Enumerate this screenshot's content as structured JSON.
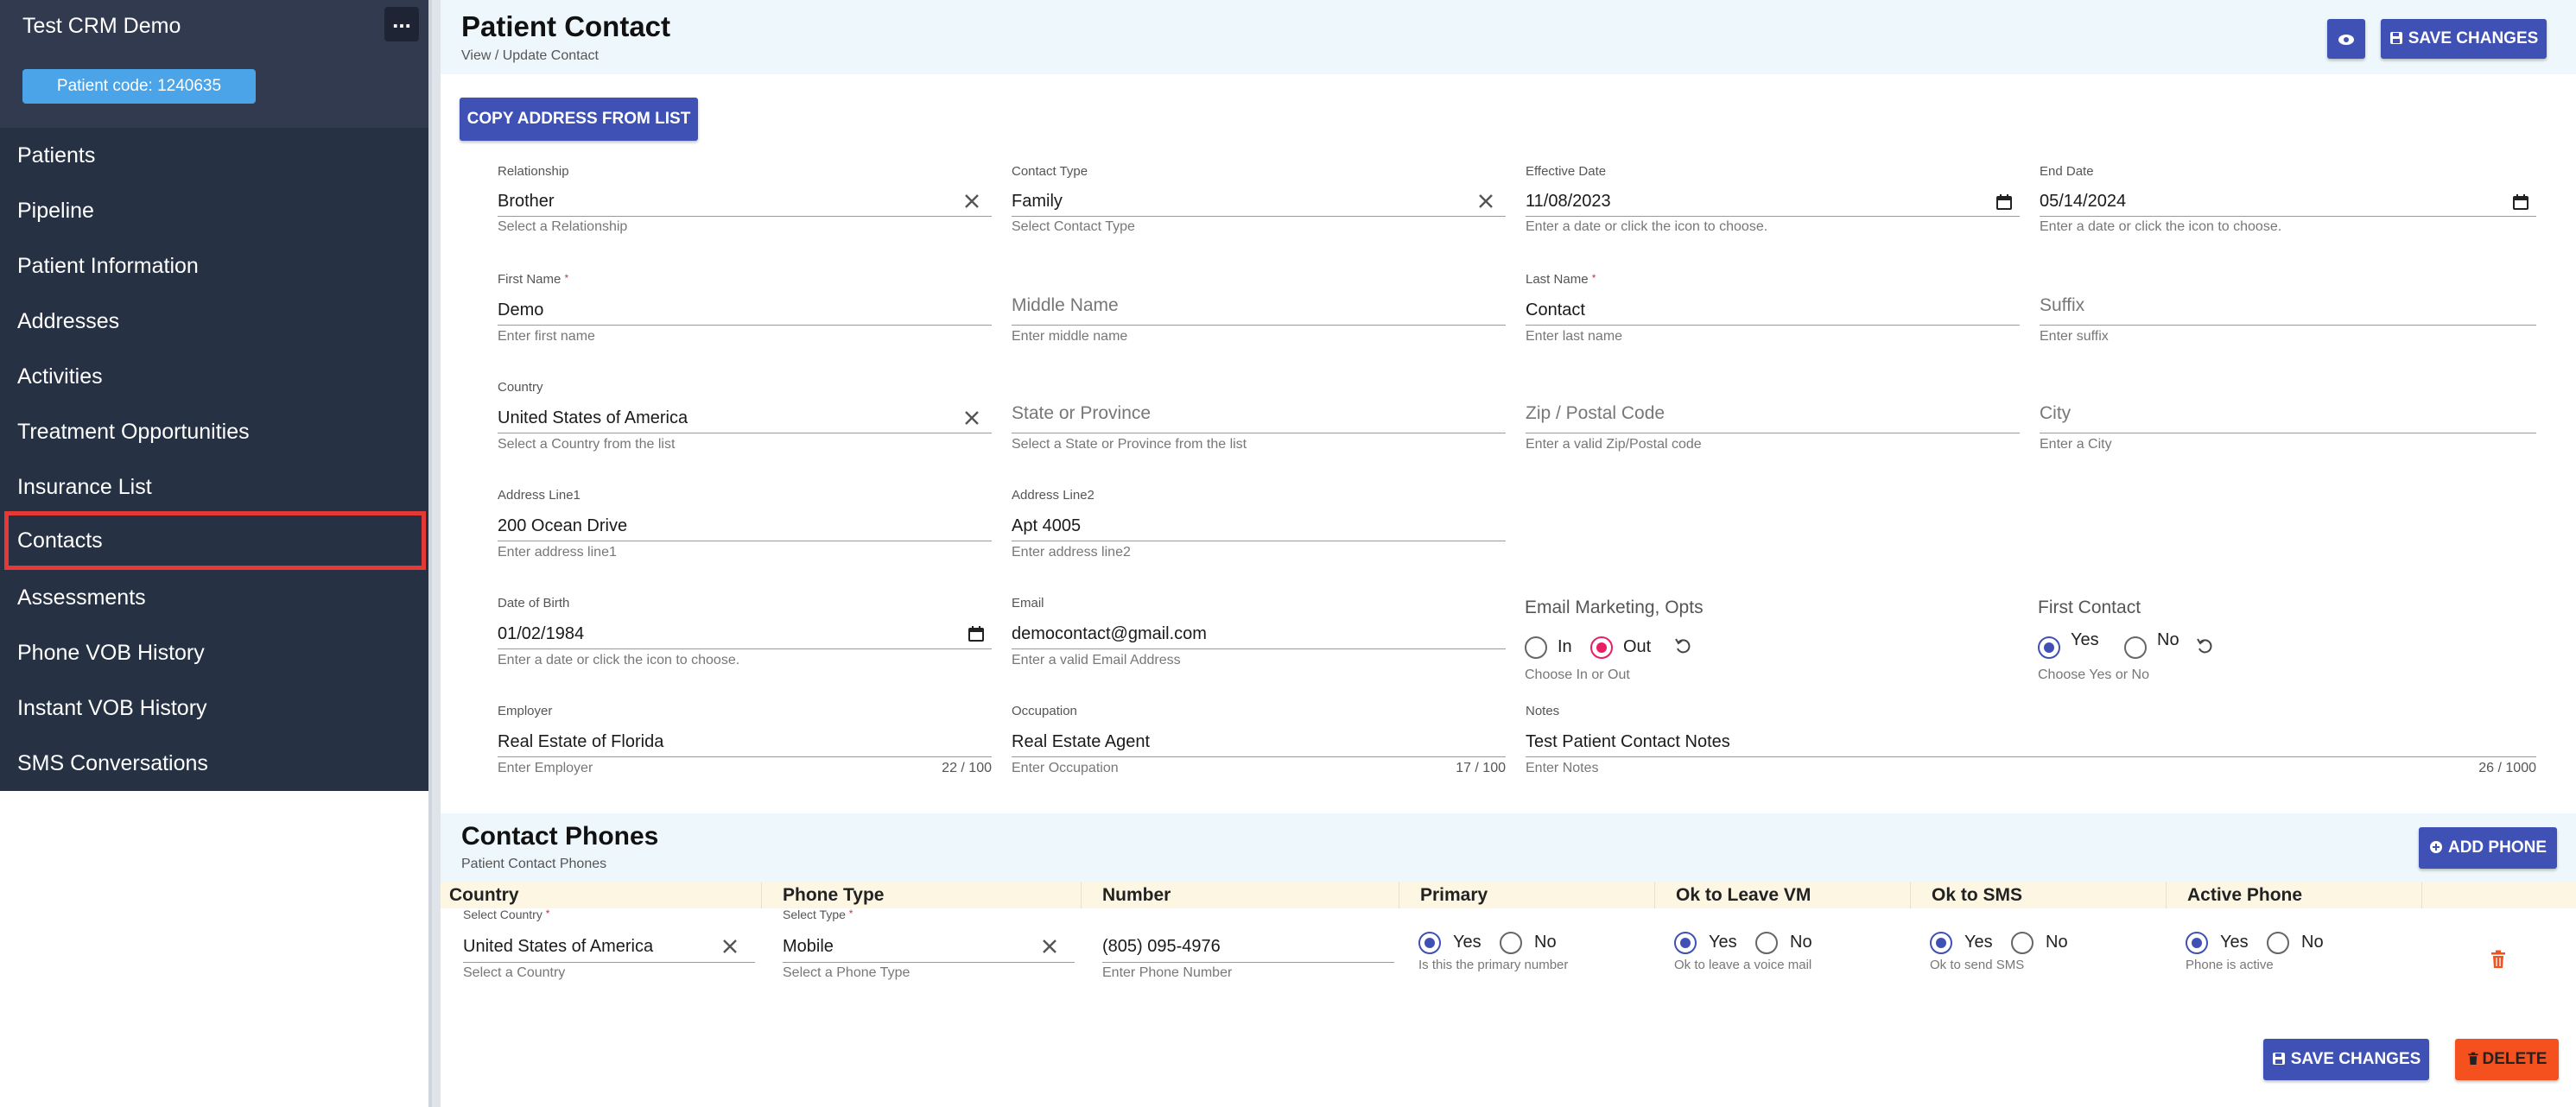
{
  "sidebar": {
    "title": "Test CRM Demo",
    "more_label": "...",
    "patient_code": "Patient code: 1240635",
    "items": [
      {
        "label": "Patients"
      },
      {
        "label": "Pipeline"
      },
      {
        "label": "Patient Information"
      },
      {
        "label": "Addresses"
      },
      {
        "label": "Activities"
      },
      {
        "label": "Treatment Opportunities"
      },
      {
        "label": "Insurance List"
      },
      {
        "label": "Contacts",
        "active": true
      },
      {
        "label": "Assessments"
      },
      {
        "label": "Phone VOB History"
      },
      {
        "label": "Instant VOB History"
      },
      {
        "label": "SMS Conversations"
      }
    ]
  },
  "header": {
    "title": "Patient Contact",
    "subtitle": "View / Update Contact",
    "save_label": "SAVE CHANGES",
    "eye_icon": "eye-icon"
  },
  "copy_address_label": "COPY ADDRESS FROM LIST",
  "form": {
    "relationship": {
      "label": "Relationship",
      "value": "Brother",
      "hint": "Select a Relationship"
    },
    "contact_type": {
      "label": "Contact Type",
      "value": "Family",
      "hint": "Select Contact Type"
    },
    "effective_date": {
      "label": "Effective Date",
      "value": "11/08/2023",
      "hint": "Enter a date or click the icon to choose."
    },
    "end_date": {
      "label": "End Date",
      "value": "05/14/2024",
      "hint": "Enter a date or click the icon to choose."
    },
    "first_name": {
      "label": "First Name",
      "value": "Demo",
      "hint": "Enter first name"
    },
    "middle_name": {
      "label": "Middle Name",
      "hint": "Enter middle name"
    },
    "last_name": {
      "label": "Last Name",
      "value": "Contact",
      "hint": "Enter last name"
    },
    "suffix": {
      "label": "Suffix",
      "hint": "Enter suffix"
    },
    "country": {
      "label": "Country",
      "value": "United States of America",
      "hint": "Select a Country from the list"
    },
    "state": {
      "label": "State or Province",
      "hint": "Select a State or Province from the list"
    },
    "zip": {
      "label": "Zip / Postal Code",
      "hint": "Enter a valid Zip/Postal code"
    },
    "city": {
      "label": "City",
      "hint": "Enter a City"
    },
    "address1": {
      "label": "Address Line1",
      "value": "200 Ocean Drive",
      "hint": "Enter address line1"
    },
    "address2": {
      "label": "Address Line2",
      "value": "Apt 4005",
      "hint": "Enter address line2"
    },
    "dob": {
      "label": "Date of Birth",
      "value": "01/02/1984",
      "hint": "Enter a date or click the icon to choose."
    },
    "email": {
      "label": "Email",
      "value": "democontact@gmail.com",
      "hint": "Enter a valid Email Address"
    },
    "email_marketing": {
      "label": "Email Marketing, Opts",
      "opt_in": "In",
      "opt_out": "Out",
      "selected": "Out",
      "hint": "Choose In or Out"
    },
    "first_contact": {
      "label": "First Contact",
      "yes": "Yes",
      "no": "No",
      "selected": "Yes",
      "hint": "Choose Yes or No"
    },
    "employer": {
      "label": "Employer",
      "value": "Real Estate of Florida",
      "hint": "Enter Employer",
      "count": "22 / 100"
    },
    "occupation": {
      "label": "Occupation",
      "value": "Real Estate Agent",
      "hint": "Enter Occupation",
      "count": "17 / 100"
    },
    "notes": {
      "label": "Notes",
      "value": "Test Patient Contact Notes",
      "hint": "Enter Notes",
      "count": "26 / 1000"
    }
  },
  "phones": {
    "title": "Contact Phones",
    "subtitle": "Patient Contact Phones",
    "add_label": "ADD PHONE",
    "columns": [
      "Country",
      "Phone Type",
      "Number",
      "Primary",
      "Ok to Leave VM",
      "Ok to SMS",
      "Active Phone"
    ],
    "row": {
      "country_label": "Select Country",
      "country": "United States of America",
      "country_hint": "Select a Country",
      "type_label": "Select Type",
      "type": "Mobile",
      "type_hint": "Select a Phone Type",
      "number": "(805) 095-4976",
      "number_hint": "Enter Phone Number",
      "yes": "Yes",
      "no": "No",
      "primary_hint": "Is this the primary number",
      "vm_hint": "Ok to leave a voice mail",
      "sms_hint": "Ok to send SMS",
      "active_hint": "Phone is active"
    }
  },
  "footer": {
    "save_label": "SAVE CHANGES",
    "delete_label": "DELETE"
  },
  "colors": {
    "primary": "#3f51b5",
    "danger": "#f4511e",
    "sidebar": "#263143",
    "highlight": "#e53935",
    "email_out": "#e91e63"
  }
}
